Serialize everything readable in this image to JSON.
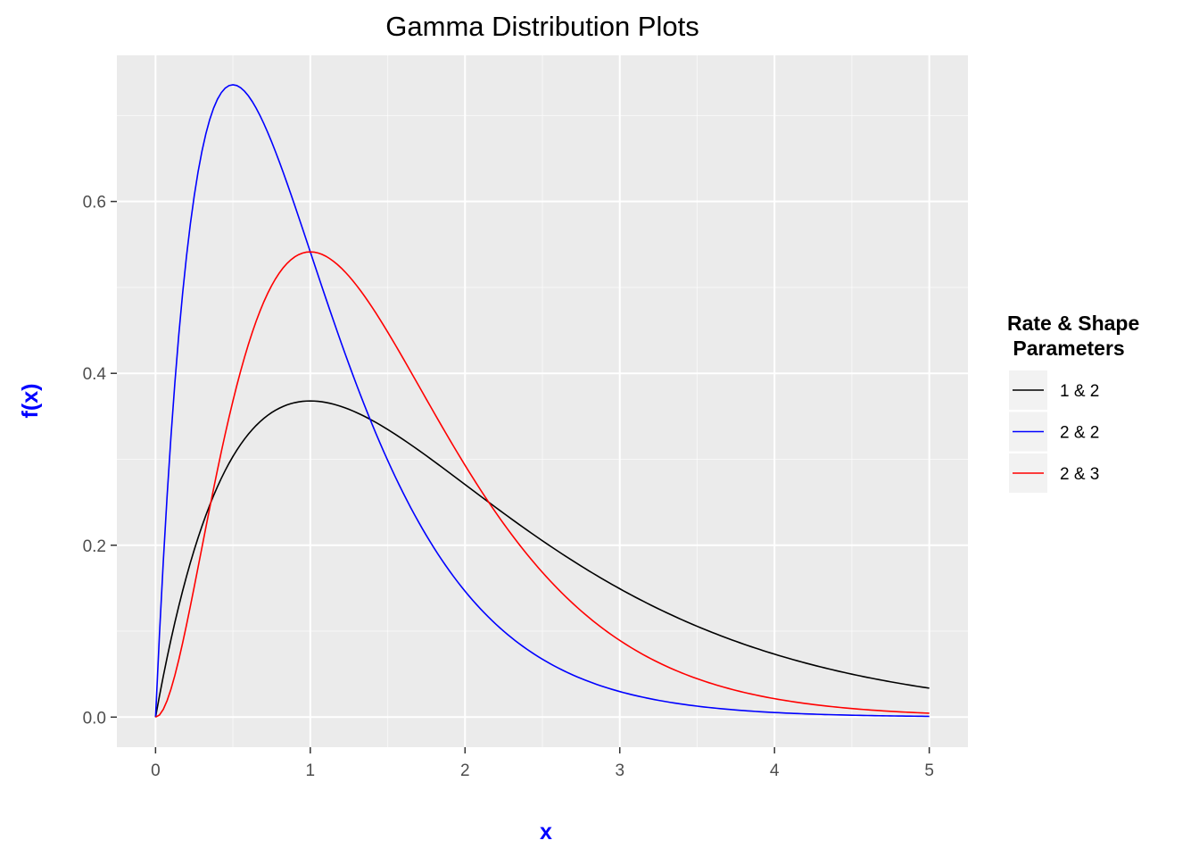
{
  "chart_data": {
    "type": "line",
    "title": "Gamma Distribution Plots",
    "xlabel": "x",
    "ylabel": "f(x)",
    "xlim": [
      -0.25,
      5.25
    ],
    "ylim": [
      -0.035,
      0.77
    ],
    "x_ticks": [
      0,
      1,
      2,
      3,
      4,
      5
    ],
    "x_tick_labels": [
      "0",
      "1",
      "2",
      "3",
      "4",
      "5"
    ],
    "y_ticks": [
      0.0,
      0.2,
      0.4,
      0.6
    ],
    "y_tick_labels": [
      "0.0",
      "0.2",
      "0.4",
      "0.6"
    ],
    "grid": true,
    "legend": {
      "title_line1": "Rate & Shape",
      "title_line2": " Parameters",
      "placement": "right"
    },
    "x_range": [
      0,
      5
    ],
    "series": [
      {
        "name": "1 & 2",
        "rate": 1,
        "shape": 2,
        "color": "#000000"
      },
      {
        "name": "2 & 2",
        "rate": 2,
        "shape": 2,
        "color": "#0000ff"
      },
      {
        "name": "2 & 3",
        "rate": 2,
        "shape": 3,
        "color": "#ff0000"
      }
    ]
  },
  "colors": {
    "panel_background": "#ebebeb",
    "grid_major": "#ffffff",
    "axis_title": "#0000ff",
    "tick_text": "#4d4d4d"
  }
}
